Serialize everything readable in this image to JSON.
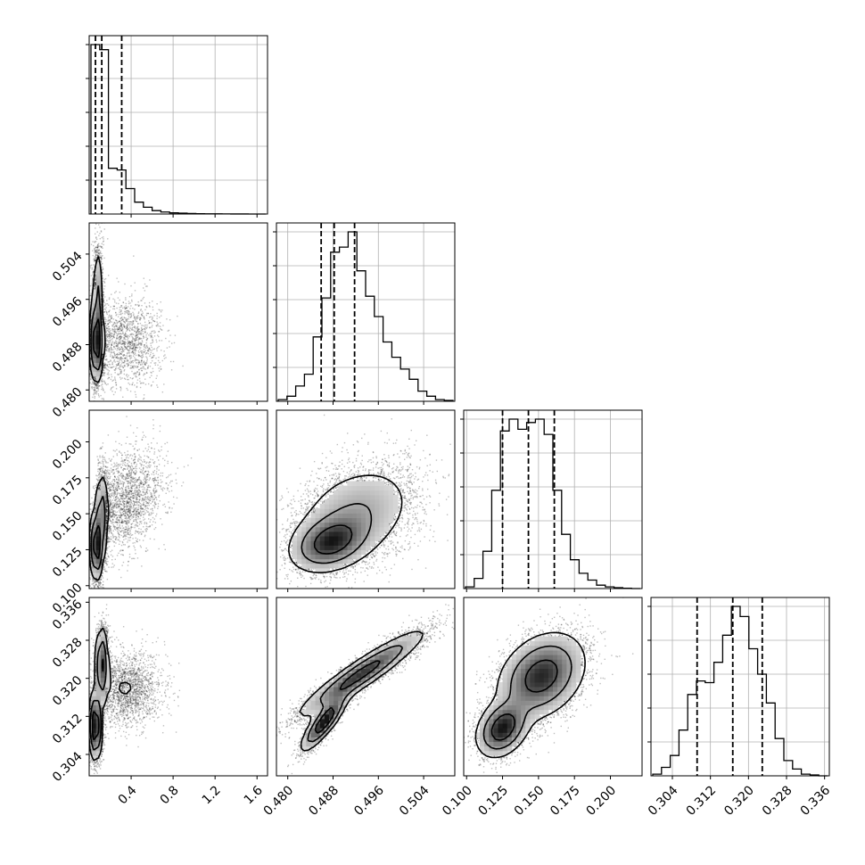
{
  "chart_data": {
    "type": "corner",
    "title": "",
    "grid": true,
    "params": [
      {
        "range": [
          0.0,
          1.7
        ],
        "ticks": [
          0.4,
          0.8,
          1.2,
          1.6
        ],
        "tick_labels": [
          "0.4",
          "0.8",
          "1.2",
          "1.6"
        ],
        "quantiles": [
          0.06,
          0.12,
          0.31
        ]
      },
      {
        "range": [
          0.478,
          0.5095
        ],
        "ticks": [
          0.48,
          0.488,
          0.496,
          0.504
        ],
        "tick_labels": [
          "0.480",
          "0.488",
          "0.496",
          "0.504"
        ],
        "quantiles": [
          0.4859,
          0.4882,
          0.4918
        ]
      },
      {
        "range": [
          0.098,
          0.222
        ],
        "ticks": [
          0.1,
          0.125,
          0.15,
          0.175,
          0.2
        ],
        "tick_labels": [
          "0.100",
          "0.125",
          "0.150",
          "0.175",
          "0.200"
        ],
        "quantiles": [
          0.125,
          0.143,
          0.161
        ]
      },
      {
        "range": [
          0.2995,
          0.337
        ],
        "ticks": [
          0.304,
          0.312,
          0.32,
          0.328,
          0.336
        ],
        "tick_labels": [
          "0.304",
          "0.312",
          "0.320",
          "0.328",
          "0.336"
        ],
        "quantiles": [
          0.3092,
          0.3167,
          0.3229
        ]
      }
    ],
    "histograms": [
      {
        "param": 0,
        "bins": 20,
        "counts": [
          1.0,
          0.97,
          0.27,
          0.26,
          0.15,
          0.07,
          0.04,
          0.02,
          0.012,
          0.007,
          0.005,
          0.003,
          0.002,
          0.001,
          0.001,
          0.0005,
          0.0003,
          0.0002,
          0.0001,
          0.0
        ]
      },
      {
        "param": 1,
        "bins": 20,
        "counts": [
          0.01,
          0.03,
          0.09,
          0.16,
          0.38,
          0.61,
          0.88,
          0.91,
          1.0,
          0.77,
          0.62,
          0.5,
          0.35,
          0.26,
          0.19,
          0.13,
          0.06,
          0.03,
          0.01,
          0.005
        ]
      },
      {
        "param": 2,
        "bins": 20,
        "counts": [
          0.01,
          0.06,
          0.22,
          0.58,
          0.93,
          1.0,
          0.94,
          0.98,
          1.0,
          0.91,
          0.58,
          0.32,
          0.17,
          0.09,
          0.05,
          0.02,
          0.01,
          0.005,
          0.002,
          0.0
        ]
      },
      {
        "param": 3,
        "bins": 20,
        "counts": [
          0.01,
          0.05,
          0.12,
          0.27,
          0.48,
          0.56,
          0.55,
          0.67,
          0.83,
          1.0,
          0.94,
          0.75,
          0.6,
          0.43,
          0.22,
          0.09,
          0.04,
          0.01,
          0.005,
          0.0
        ]
      }
    ],
    "pairs": [
      {
        "x": 0,
        "y": 1,
        "samples": 6500,
        "components": [
          {
            "w": 0.55,
            "mx": 0.07,
            "my": 0.4885,
            "sx": 0.03,
            "sy": 0.0035,
            "rho": 0.0
          },
          {
            "w": 0.2,
            "mx": 0.08,
            "my": 0.497,
            "sx": 0.025,
            "sy": 0.0045,
            "rho": 0.0
          },
          {
            "w": 0.25,
            "mx": 0.33,
            "my": 0.4885,
            "sx": 0.18,
            "sy": 0.004,
            "rho": 0.0
          }
        ]
      },
      {
        "x": 0,
        "y": 2,
        "samples": 6500,
        "components": [
          {
            "w": 0.45,
            "mx": 0.07,
            "my": 0.128,
            "sx": 0.03,
            "sy": 0.012,
            "rho": 0.0
          },
          {
            "w": 0.25,
            "mx": 0.12,
            "my": 0.15,
            "sx": 0.03,
            "sy": 0.015,
            "rho": 0.0
          },
          {
            "w": 0.3,
            "mx": 0.35,
            "my": 0.16,
            "sx": 0.18,
            "sy": 0.018,
            "rho": 0.3
          }
        ]
      },
      {
        "x": 1,
        "y": 2,
        "samples": 7000,
        "components": [
          {
            "w": 0.45,
            "mx": 0.4875,
            "my": 0.13,
            "sx": 0.0035,
            "sy": 0.01,
            "rho": 0.3
          },
          {
            "w": 0.55,
            "mx": 0.492,
            "my": 0.15,
            "sx": 0.0055,
            "sy": 0.018,
            "rho": 0.3
          }
        ]
      },
      {
        "x": 0,
        "y": 3,
        "samples": 6500,
        "components": [
          {
            "w": 0.4,
            "mx": 0.06,
            "my": 0.31,
            "sx": 0.03,
            "sy": 0.0035,
            "rho": 0.0
          },
          {
            "w": 0.3,
            "mx": 0.12,
            "my": 0.323,
            "sx": 0.03,
            "sy": 0.004,
            "rho": 0.0
          },
          {
            "w": 0.3,
            "mx": 0.34,
            "my": 0.318,
            "sx": 0.18,
            "sy": 0.004,
            "rho": 0.0
          }
        ]
      },
      {
        "x": 1,
        "y": 3,
        "samples": 7000,
        "components": [
          {
            "w": 0.3,
            "mx": 0.4865,
            "my": 0.311,
            "sx": 0.002,
            "sy": 0.003,
            "rho": 0.85
          },
          {
            "w": 0.7,
            "mx": 0.493,
            "my": 0.321,
            "sx": 0.0055,
            "sy": 0.0045,
            "rho": 0.93
          }
        ]
      },
      {
        "x": 2,
        "y": 3,
        "samples": 7000,
        "components": [
          {
            "w": 0.3,
            "mx": 0.125,
            "my": 0.3095,
            "sx": 0.009,
            "sy": 0.003,
            "rho": 0.3
          },
          {
            "w": 0.7,
            "mx": 0.152,
            "my": 0.3205,
            "sx": 0.015,
            "sy": 0.0045,
            "rho": 0.3
          }
        ]
      }
    ]
  }
}
